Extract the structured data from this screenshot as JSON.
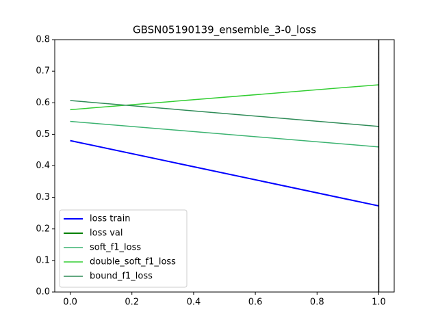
{
  "chart_data": {
    "type": "line",
    "title": "GBSN05190139_ensemble_3-0_loss",
    "x": [
      0,
      1
    ],
    "series": [
      {
        "name": "loss train",
        "color": "#0000ff",
        "width": 2,
        "values": [
          0.48,
          0.273
        ]
      },
      {
        "name": "loss val",
        "color": "#008000",
        "width": 2,
        "values": [
          null,
          null
        ]
      },
      {
        "name": "soft_f1_loss",
        "color": "#3cb371",
        "width": 1.5,
        "values": [
          0.541,
          0.46
        ]
      },
      {
        "name": "double_soft_f1_loss",
        "color": "#32cd32",
        "width": 1.5,
        "values": [
          0.578,
          0.657
        ]
      },
      {
        "name": "bound_f1_loss",
        "color": "#2e8b57",
        "width": 1.5,
        "values": [
          0.607,
          0.525
        ]
      }
    ],
    "vlines": [
      1
    ],
    "xlim": [
      -0.05,
      1.05
    ],
    "xticks": [
      {
        "value": 0,
        "label": "0.0"
      },
      0.2,
      0.4,
      0.6,
      0.8,
      {
        "value": 1,
        "label": "1.0"
      }
    ],
    "ylim": [
      0,
      0.8
    ],
    "yticks": [
      {
        "value": 0,
        "label": "0.0"
      },
      0.1,
      0.2,
      0.3,
      0.4,
      0.5,
      0.6,
      0.7,
      0.8
    ],
    "legend": "lower left"
  }
}
